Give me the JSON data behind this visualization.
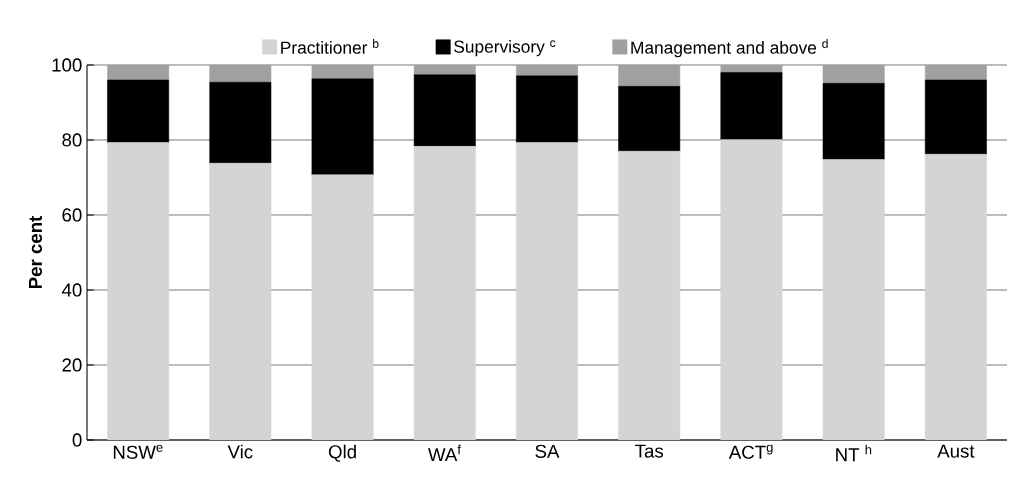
{
  "chart_data": {
    "type": "bar",
    "stacked": true,
    "ylabel": "Per cent",
    "categories": [
      "NSW$^{e}$",
      "Vic",
      "Qld",
      "WA$^{f}$",
      "SA",
      "Tas",
      "ACT$^{g}$",
      "NT $^{h}$",
      "Aust"
    ],
    "series": [
      {
        "name": "Practitioner $^{b}$",
        "color": "#d4d4d4",
        "values": [
          79.3,
          73.8,
          70.7,
          78.3,
          79.3,
          77.0,
          80.1,
          74.8,
          76.2
        ]
      },
      {
        "name": "Supervisory $^{c}$",
        "color": "#000000",
        "values": [
          16.7,
          21.6,
          25.6,
          19.1,
          17.8,
          17.3,
          17.9,
          20.3,
          19.8
        ]
      },
      {
        "name": "Management and above $^{d}$",
        "color": "#a0a0a0",
        "values": [
          4.0,
          4.6,
          3.7,
          2.6,
          2.9,
          5.7,
          2.0,
          4.9,
          4.0
        ]
      }
    ],
    "ylim": [
      0,
      100
    ],
    "yticks": [
      0,
      20,
      40,
      60,
      80,
      100
    ],
    "grid": "y",
    "legend": "top"
  }
}
